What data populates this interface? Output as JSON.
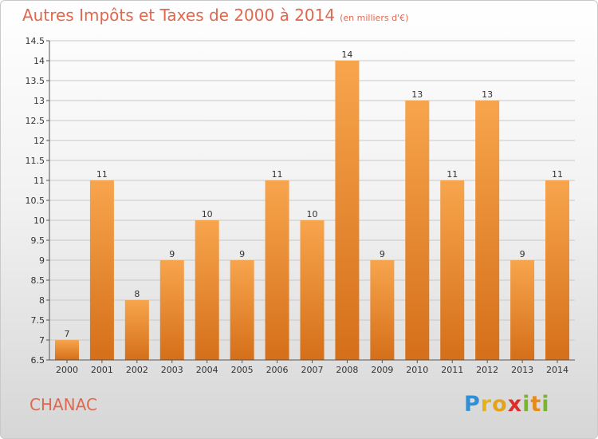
{
  "title": "Autres Impôts et Taxes de 2000 à 2014",
  "subtitle": "(en milliers d'€)",
  "commune": "CHANAC",
  "logo": {
    "letters": [
      "P",
      "r",
      "o",
      "x",
      "i",
      "t",
      "i"
    ],
    "colors": [
      "#2f8fd6",
      "#e5b21b",
      "#e5a21b",
      "#d9302b",
      "#7ab62c",
      "#e58a1b",
      "#7ab62c"
    ]
  },
  "colors": {
    "bar_top": "#f7a54d",
    "bar_bottom": "#d56f19",
    "title": "#e0684f",
    "grid": "#c8c8c8"
  },
  "chart_data": {
    "type": "bar",
    "title": "Autres Impôts et Taxes de 2000 à 2014",
    "subtitle": "(en milliers d'€)",
    "categories": [
      "2000",
      "2001",
      "2002",
      "2003",
      "2004",
      "2005",
      "2006",
      "2007",
      "2008",
      "2009",
      "2010",
      "2011",
      "2012",
      "2013",
      "2014"
    ],
    "values": [
      7,
      11,
      8,
      9,
      10,
      9,
      11,
      10,
      14,
      9,
      13,
      11,
      13,
      9,
      11
    ],
    "ylim": [
      6.5,
      14.5
    ],
    "yticks": [
      "6.5",
      "7",
      "7.5",
      "8",
      "8.5",
      "9",
      "9.5",
      "10",
      "10.5",
      "11",
      "11.5",
      "12",
      "12.5",
      "13",
      "13.5",
      "14",
      "14.5"
    ],
    "grid": true,
    "data_labels": true
  }
}
